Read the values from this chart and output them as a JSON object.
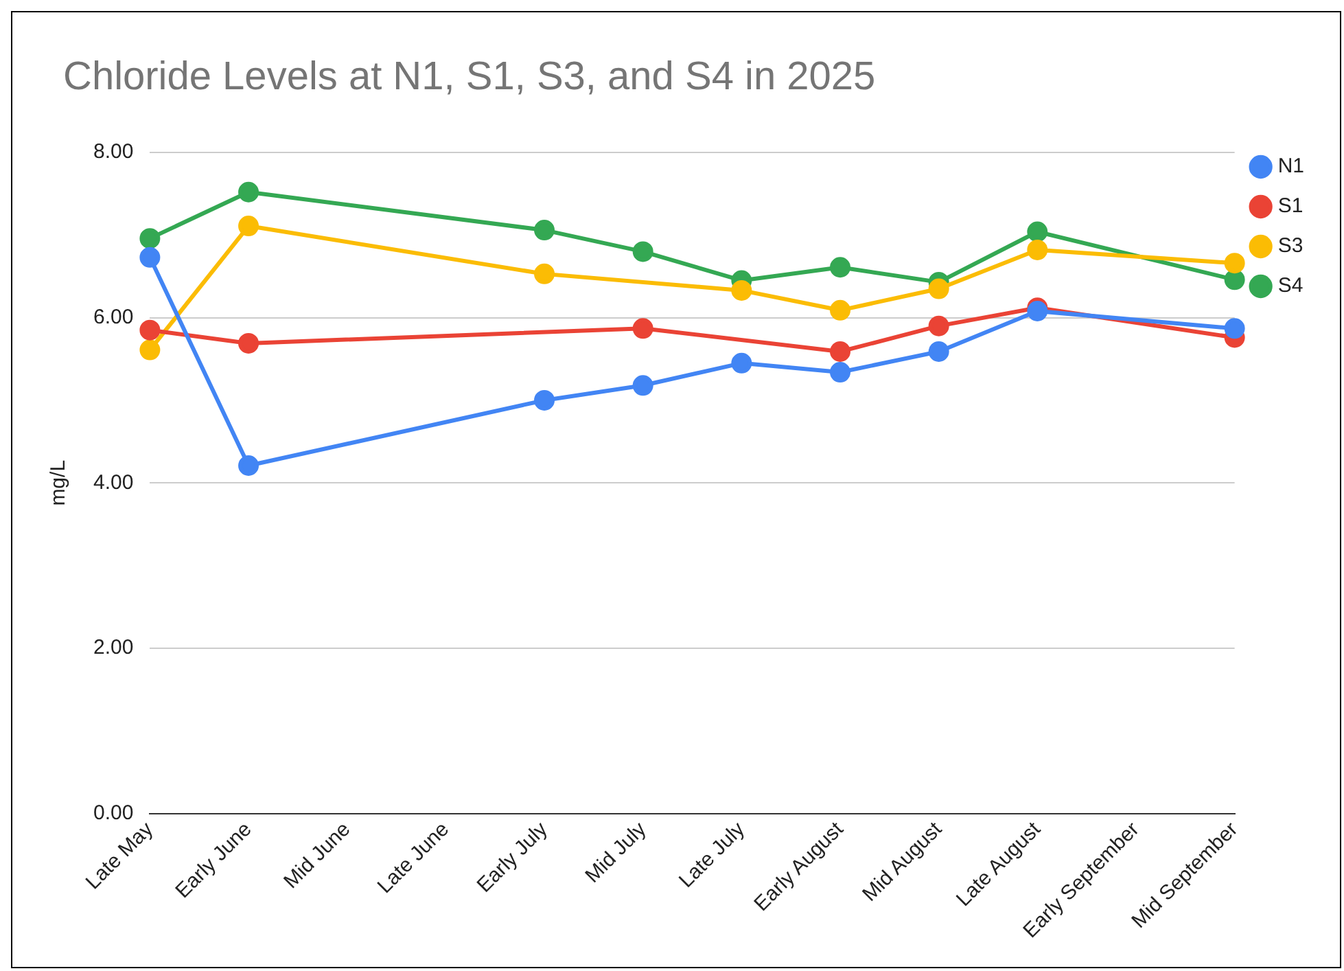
{
  "chart_data": {
    "type": "line",
    "title": "Chloride Levels at N1, S1, S3, and S4 in 2025",
    "ylabel": "mg/L",
    "categories": [
      "Late May",
      "Early June",
      "Mid June",
      "Late June",
      "Early July",
      "Mid July",
      "Late July",
      "Early August",
      "Mid August",
      "Late August",
      "Early September",
      "Mid September"
    ],
    "series": [
      {
        "name": "N1",
        "color": "#4285f4",
        "values": [
          6.73,
          4.21,
          null,
          null,
          5.0,
          5.18,
          5.45,
          5.34,
          5.59,
          6.08,
          null,
          5.87
        ]
      },
      {
        "name": "S1",
        "color": "#ea4335",
        "values": [
          5.85,
          5.69,
          null,
          null,
          null,
          5.87,
          null,
          5.59,
          5.9,
          6.12,
          null,
          5.76
        ]
      },
      {
        "name": "S3",
        "color": "#fbbc04",
        "values": [
          5.61,
          7.11,
          null,
          null,
          6.53,
          null,
          6.33,
          6.09,
          6.35,
          6.82,
          null,
          6.66
        ]
      },
      {
        "name": "S4",
        "color": "#34a853",
        "values": [
          6.96,
          7.52,
          null,
          null,
          7.06,
          6.8,
          6.45,
          6.61,
          6.43,
          7.04,
          null,
          6.46
        ]
      }
    ],
    "ylim": [
      0,
      8
    ],
    "yticks": [
      {
        "value": 0,
        "label": "0.00"
      },
      {
        "value": 2,
        "label": "2.00"
      },
      {
        "value": 4,
        "label": "4.00"
      },
      {
        "value": 6,
        "label": "6.00"
      },
      {
        "value": 8,
        "label": "8.00"
      }
    ],
    "grid": "y",
    "legend": "right",
    "marker": "circle",
    "line_style": "solid"
  }
}
